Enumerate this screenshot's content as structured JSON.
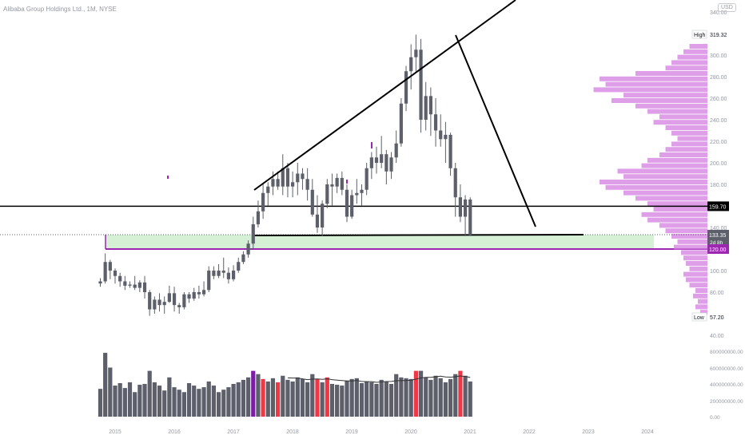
{
  "header": {
    "symbol_text": "Alibaba Group Holdings Ltd., 1M, NYSE"
  },
  "currency_badge": "USD",
  "colors": {
    "candle": "#5d606b",
    "trendline": "#000000",
    "support_zone": "#d6f0d6",
    "support_line": "#9c27b0",
    "volume_profile": "#d47fe0",
    "volume_bar": "#5d606b",
    "volume_bar_highlight": "#f23645",
    "volume_bar_purple": "#7b1fa2",
    "price_label_bg": "#000000",
    "current_price_bg": "#5d606b"
  },
  "price_axis": {
    "ticks": [
      "340.00",
      "300.00",
      "280.00",
      "260.00",
      "240.00",
      "220.00",
      "200.00",
      "180.00",
      "140.00",
      "100.00",
      "80.00",
      "40.00"
    ],
    "high_label": "High",
    "high_value": "319.32",
    "low_label": "Low",
    "low_value": "57.20",
    "level_label": "159.70",
    "current_price": "133.35",
    "countdown": "2d 8h",
    "support_label": "120.00"
  },
  "volume_axis": {
    "ticks": [
      "800000000.00",
      "600000000.00",
      "400000000.00",
      "200000000.00",
      "0.00"
    ]
  },
  "time_axis": {
    "labels": [
      "2015",
      "2016",
      "2017",
      "2018",
      "2019",
      "2020",
      "2021",
      "2022",
      "2023",
      "2024"
    ]
  },
  "chart_data": {
    "type": "candlestick",
    "title": "Alibaba Group Holdings Ltd., 1M, NYSE",
    "timeframe": "1M",
    "ylim": [
      40,
      340
    ],
    "start_month": "2014-10",
    "candles_ohlc": [
      [
        88,
        93,
        85,
        90
      ],
      [
        90,
        116,
        88,
        108
      ],
      [
        108,
        110,
        92,
        100
      ],
      [
        100,
        102,
        88,
        95
      ],
      [
        95,
        98,
        85,
        90
      ],
      [
        90,
        95,
        82,
        86
      ],
      [
        86,
        90,
        84,
        87
      ],
      [
        87,
        95,
        82,
        84
      ],
      [
        84,
        91,
        80,
        89
      ],
      [
        89,
        95,
        74,
        80
      ],
      [
        80,
        82,
        58,
        64
      ],
      [
        64,
        76,
        60,
        73
      ],
      [
        73,
        79,
        62,
        68
      ],
      [
        68,
        76,
        60,
        71
      ],
      [
        71,
        86,
        70,
        79
      ],
      [
        79,
        85,
        62,
        68
      ],
      [
        68,
        70,
        60,
        66
      ],
      [
        66,
        80,
        64,
        78
      ],
      [
        78,
        80,
        70,
        74
      ],
      [
        74,
        84,
        72,
        80
      ],
      [
        80,
        86,
        74,
        78
      ],
      [
        78,
        90,
        76,
        82
      ],
      [
        82,
        104,
        80,
        100
      ],
      [
        100,
        104,
        92,
        95
      ],
      [
        95,
        106,
        93,
        100
      ],
      [
        100,
        112,
        93,
        98
      ],
      [
        98,
        103,
        88,
        92
      ],
      [
        92,
        105,
        90,
        100
      ],
      [
        100,
        112,
        98,
        108
      ],
      [
        108,
        118,
        106,
        115
      ],
      [
        115,
        128,
        112,
        125
      ],
      [
        125,
        150,
        120,
        143
      ],
      [
        143,
        165,
        140,
        155
      ],
      [
        155,
        180,
        148,
        172
      ],
      [
        172,
        182,
        160,
        178
      ],
      [
        178,
        192,
        170,
        185
      ],
      [
        185,
        192,
        175,
        178
      ],
      [
        178,
        208,
        170,
        195
      ],
      [
        195,
        200,
        168,
        178
      ],
      [
        178,
        192,
        168,
        182
      ],
      [
        182,
        200,
        170,
        190
      ],
      [
        190,
        195,
        175,
        185
      ],
      [
        185,
        195,
        165,
        175
      ],
      [
        175,
        185,
        150,
        152
      ],
      [
        152,
        170,
        135,
        140
      ],
      [
        140,
        165,
        132,
        162
      ],
      [
        162,
        185,
        158,
        180
      ],
      [
        180,
        190,
        160,
        178
      ],
      [
        178,
        190,
        172,
        186
      ],
      [
        186,
        192,
        170,
        175
      ],
      [
        175,
        180,
        145,
        150
      ],
      [
        150,
        175,
        148,
        170
      ],
      [
        170,
        185,
        162,
        172
      ],
      [
        172,
        180,
        160,
        175
      ],
      [
        175,
        200,
        170,
        195
      ],
      [
        195,
        210,
        185,
        205
      ],
      [
        205,
        215,
        190,
        200
      ],
      [
        200,
        225,
        195,
        208
      ],
      [
        208,
        212,
        180,
        192
      ],
      [
        192,
        210,
        185,
        205
      ],
      [
        205,
        230,
        200,
        218
      ],
      [
        218,
        260,
        215,
        255
      ],
      [
        255,
        290,
        248,
        285
      ],
      [
        285,
        310,
        268,
        298
      ],
      [
        298,
        319,
        285,
        305
      ],
      [
        305,
        315,
        228,
        240
      ],
      [
        240,
        275,
        230,
        262
      ],
      [
        262,
        270,
        225,
        245
      ],
      [
        245,
        260,
        215,
        230
      ],
      [
        230,
        245,
        215,
        222
      ],
      [
        222,
        238,
        200,
        226
      ],
      [
        226,
        228,
        188,
        195
      ],
      [
        195,
        200,
        150,
        168
      ],
      [
        168,
        180,
        145,
        150
      ],
      [
        150,
        170,
        132,
        166
      ],
      [
        166,
        168,
        132,
        133
      ]
    ],
    "volume": [
      340,
      780,
      600,
      380,
      410,
      350,
      420,
      300,
      390,
      400,
      560,
      420,
      380,
      320,
      480,
      360,
      330,
      300,
      410,
      380,
      340,
      360,
      430,
      380,
      300,
      330,
      360,
      400,
      420,
      450,
      480,
      560,
      520,
      460,
      430,
      470,
      420,
      500,
      450,
      430,
      480,
      460,
      420,
      520,
      460,
      420,
      480,
      400,
      390,
      380,
      440,
      460,
      470,
      410,
      430,
      420,
      400,
      450,
      430,
      400,
      520,
      480,
      470,
      460,
      560,
      560,
      480,
      450,
      500,
      470,
      420,
      460,
      520,
      560,
      500,
      430
    ],
    "volume_highlight_red": [
      33,
      36,
      44,
      46,
      64,
      73
    ],
    "volume_highlight_purple": [
      31
    ],
    "horizontal_levels": [
      159.7,
      133.35,
      120
    ],
    "support_zone": [
      120,
      133.35
    ],
    "trendlines": [
      {
        "from": [
          "2017-06",
          180
        ],
        "to": [
          "2022-01",
          360
        ]
      },
      {
        "from": [
          "2020-10",
          317
        ],
        "to": [
          "2021-12",
          140
        ]
      }
    ],
    "annotations": {
      "high": 319.32,
      "low": 57.2,
      "last": 133.35
    }
  }
}
